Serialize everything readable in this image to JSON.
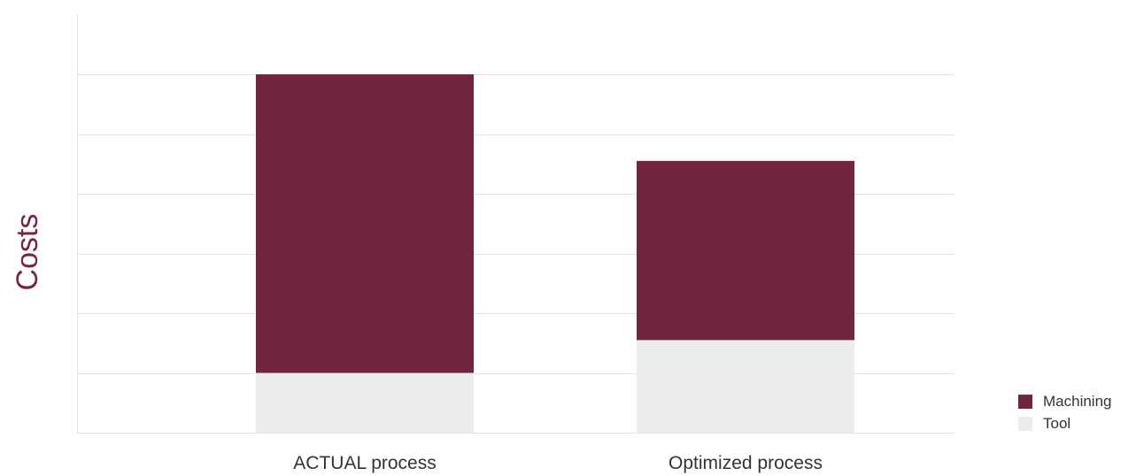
{
  "chart_data": {
    "type": "bar",
    "stacked": true,
    "title": "",
    "xlabel": "",
    "ylabel": "Costs",
    "categories": [
      "ACTUAL process",
      "Optimized process"
    ],
    "series": [
      {
        "name": "Tool",
        "values": [
          1.0,
          1.55
        ],
        "color": "#ececec"
      },
      {
        "name": "Machining",
        "values": [
          5.0,
          3.0
        ],
        "color": "#74253e"
      }
    ],
    "ylim": [
      0,
      7
    ],
    "y_ticks_labeled": false,
    "grid": true,
    "legend_position": "bottom-right",
    "legend_order": [
      "Machining",
      "Tool"
    ]
  }
}
